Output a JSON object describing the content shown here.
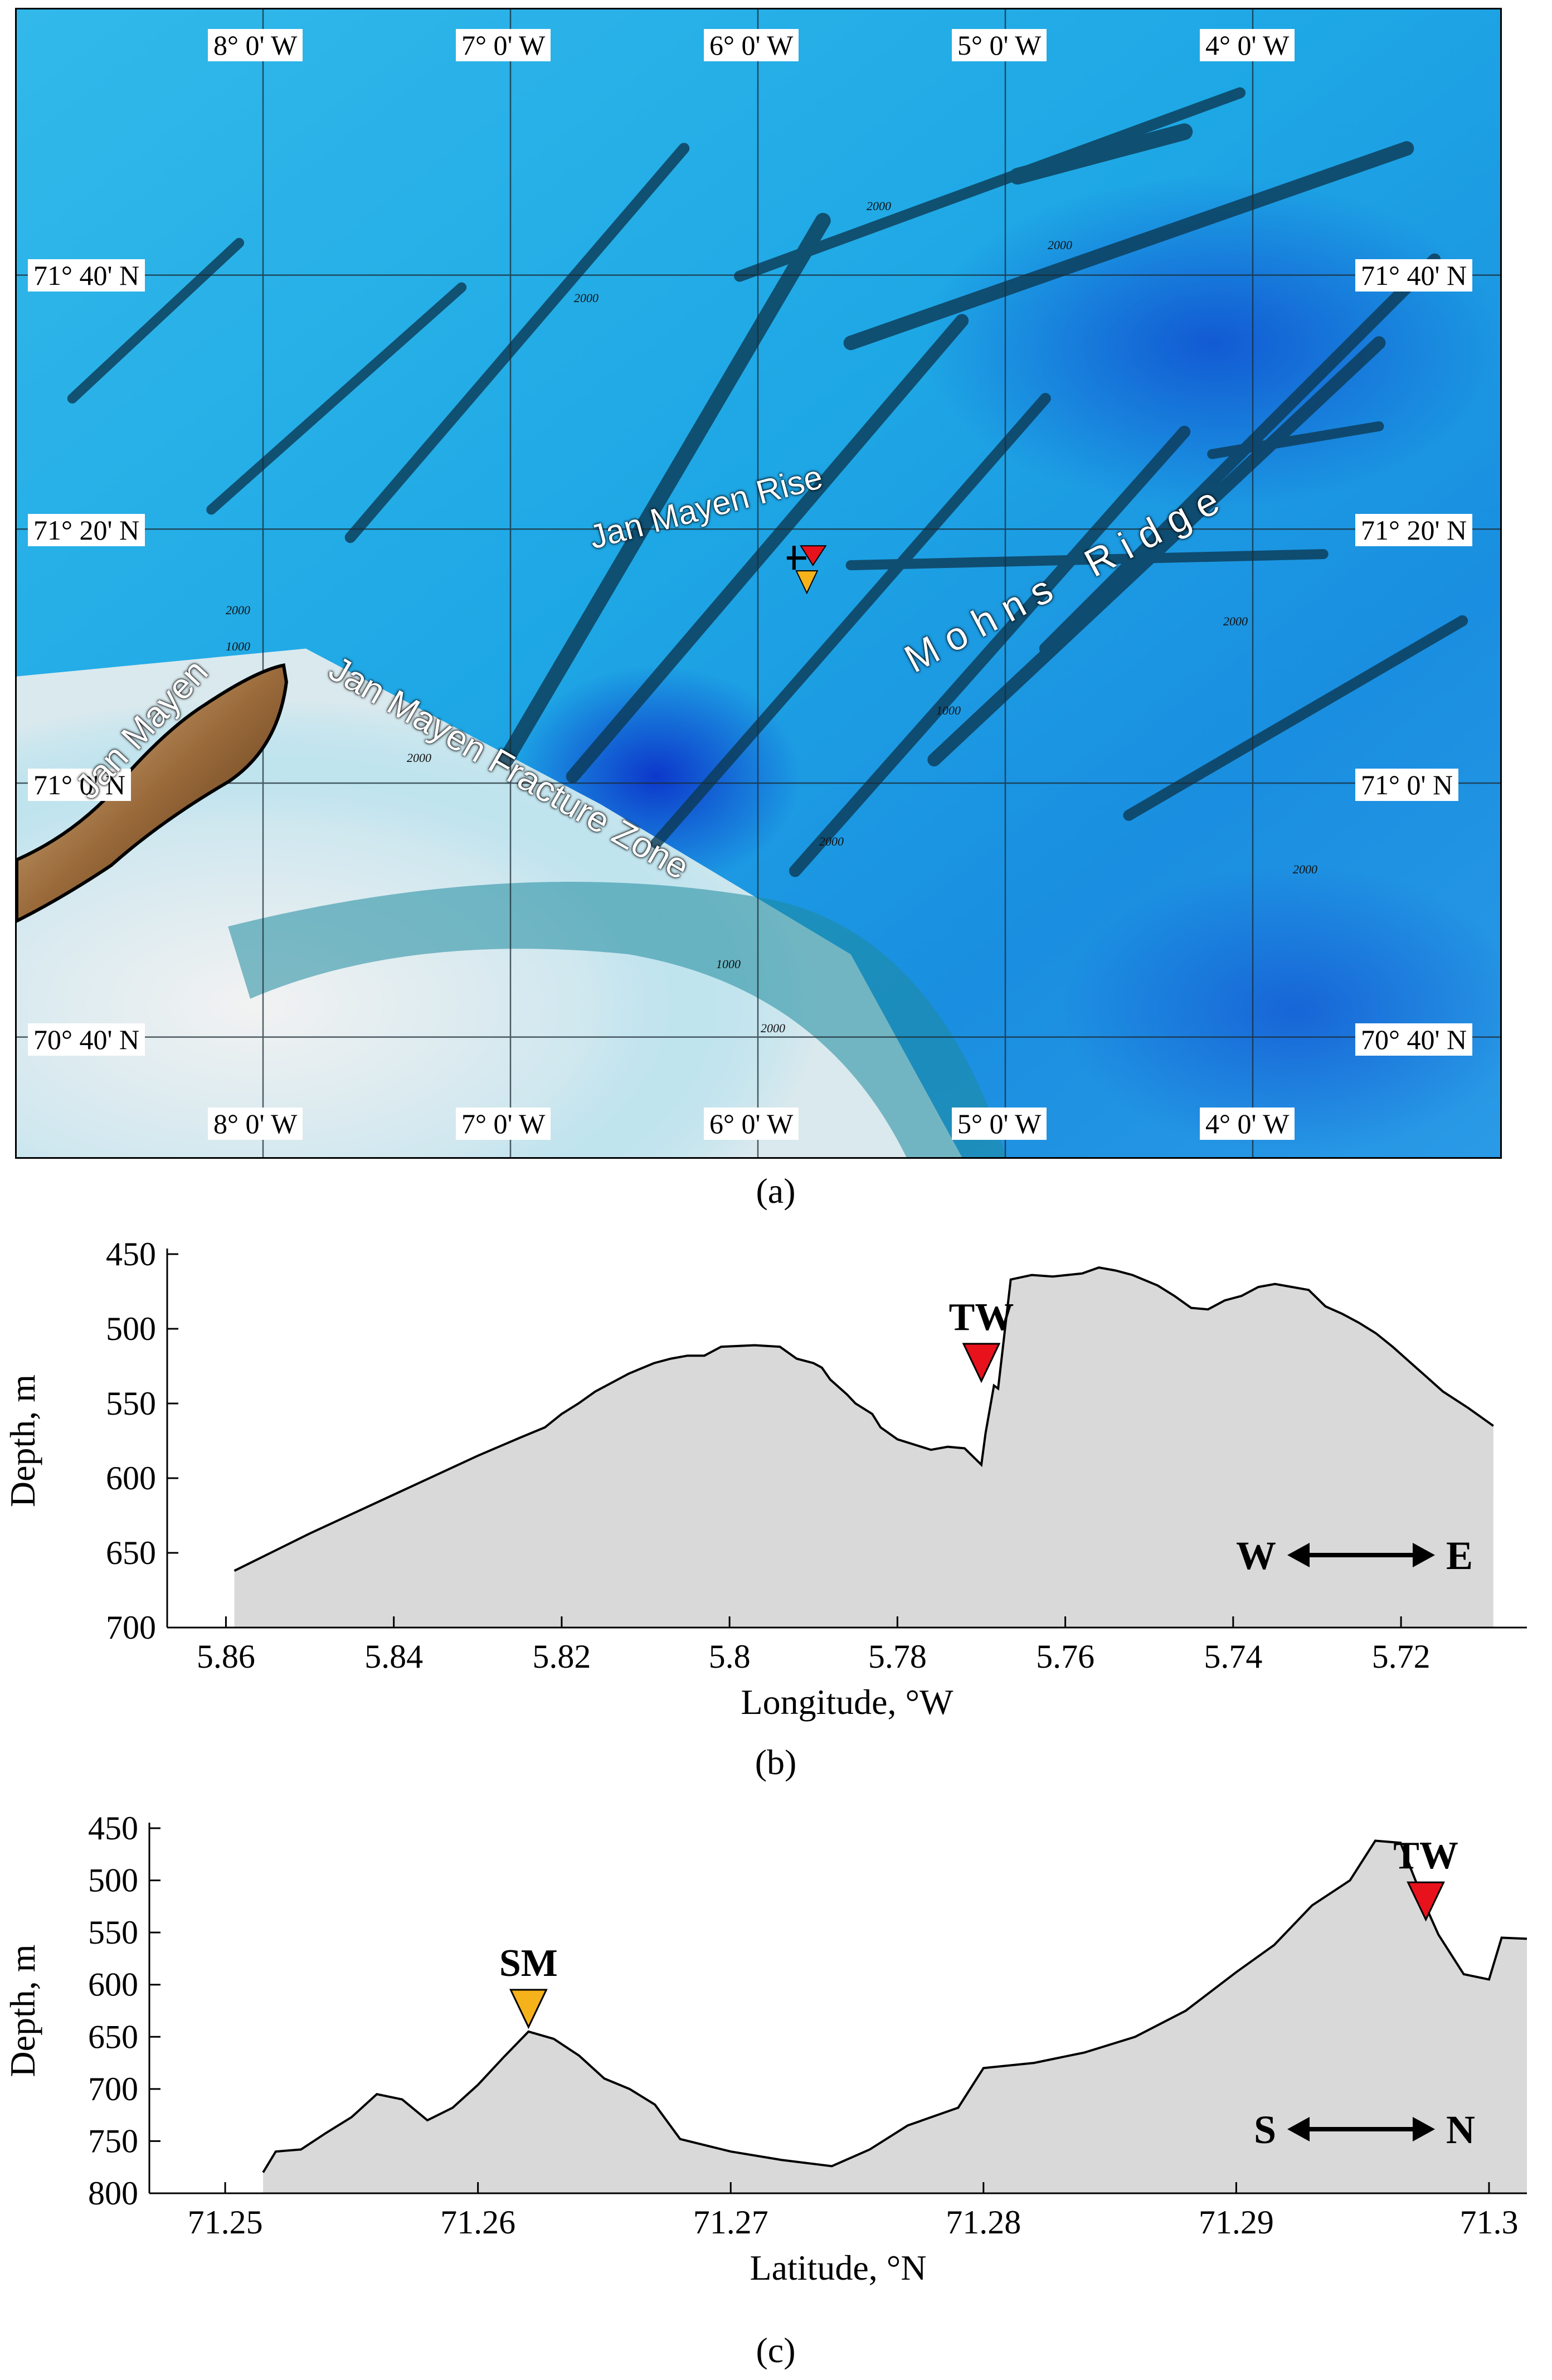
{
  "panel_a": {
    "caption": "(a)",
    "longitude_labels": [
      "8° 0' W",
      "7° 0' W",
      "6° 0' W",
      "5° 0' W",
      "4° 0' W"
    ],
    "latitude_labels": [
      "71° 40' N",
      "71° 20' N",
      "71° 0' N",
      "70° 40' N"
    ],
    "place_names": {
      "island": "Jan Mayen",
      "rise": "Jan Mayen Rise",
      "fracture_zone": "Jan Mayen Fracture Zone",
      "ridge": "M o h n s    R i d g e"
    },
    "contour_labels": [
      "2000",
      "1000",
      "2000",
      "2000",
      "2000",
      "2000",
      "1000",
      "2000",
      "2000",
      "1000",
      "2000",
      "2000"
    ],
    "markers": [
      {
        "name": "TW",
        "color": "#e8121c"
      },
      {
        "name": "SM",
        "color": "#f6b21a"
      }
    ]
  },
  "chart_data": [
    {
      "type": "area",
      "panel": "(b)",
      "xlabel": "Longitude, °W",
      "ylabel": "Depth, m",
      "x_ticks": [
        "5.86",
        "5.84",
        "5.82",
        "5.8",
        "5.78",
        "5.76",
        "5.74",
        "5.72"
      ],
      "y_ticks": [
        "450",
        "500",
        "550",
        "600",
        "650",
        "700"
      ],
      "xlim": [
        5.867,
        5.705
      ],
      "ylim": [
        700,
        450
      ],
      "x_reversed": true,
      "y_inverted": true,
      "grid": false,
      "series": [
        {
          "values": [
            [
              5.859,
              662
            ],
            [
              5.85,
              637
            ],
            [
              5.84,
              611
            ],
            [
              5.83,
              585
            ],
            [
              5.825,
              573
            ],
            [
              5.822,
              566
            ],
            [
              5.82,
              557
            ],
            [
              5.818,
              550
            ],
            [
              5.816,
              542
            ],
            [
              5.814,
              536
            ],
            [
              5.812,
              530
            ],
            [
              5.809,
              523
            ],
            [
              5.807,
              520
            ],
            [
              5.805,
              518
            ],
            [
              5.803,
              518
            ],
            [
              5.801,
              512
            ],
            [
              5.797,
              511
            ],
            [
              5.794,
              512
            ],
            [
              5.792,
              520
            ],
            [
              5.79,
              523
            ],
            [
              5.789,
              526
            ],
            [
              5.788,
              534
            ],
            [
              5.786,
              544
            ],
            [
              5.785,
              550
            ],
            [
              5.783,
              557
            ],
            [
              5.782,
              566
            ],
            [
              5.78,
              574
            ],
            [
              5.776,
              581
            ],
            [
              5.774,
              579
            ],
            [
              5.772,
              580
            ],
            [
              5.77,
              591
            ],
            [
              5.7695,
              570
            ],
            [
              5.7685,
              538
            ],
            [
              5.768,
              540
            ],
            [
              5.7665,
              467
            ],
            [
              5.764,
              464
            ],
            [
              5.7615,
              465
            ],
            [
              5.758,
              463
            ],
            [
              5.756,
              459
            ],
            [
              5.754,
              461
            ],
            [
              5.752,
              464
            ],
            [
              5.749,
              471
            ],
            [
              5.747,
              478
            ],
            [
              5.745,
              486
            ],
            [
              5.743,
              487
            ],
            [
              5.741,
              481
            ],
            [
              5.739,
              478
            ],
            [
              5.737,
              472
            ],
            [
              5.735,
              470
            ],
            [
              5.733,
              472
            ],
            [
              5.731,
              474
            ],
            [
              5.729,
              485
            ],
            [
              5.727,
              490
            ],
            [
              5.725,
              496
            ],
            [
              5.723,
              503
            ],
            [
              5.721,
              512
            ],
            [
              5.719,
              522
            ],
            [
              5.717,
              532
            ],
            [
              5.715,
              542
            ],
            [
              5.712,
              553
            ],
            [
              5.709,
              565
            ]
          ],
          "note_label": ""
        }
      ],
      "annotations": [
        {
          "label": "TW",
          "x": 5.77,
          "y": 538,
          "color": "#e8121c"
        }
      ],
      "direction": {
        "left": "W",
        "right": "E"
      }
    },
    {
      "type": "area",
      "panel": "(c)",
      "xlabel": "Latitude, °N",
      "ylabel": "Depth, m",
      "x_ticks": [
        "71.25",
        "71.26",
        "71.27",
        "71.28",
        "71.29",
        "71.3"
      ],
      "y_ticks": [
        "450",
        "500",
        "550",
        "600",
        "650",
        "700",
        "750",
        "800"
      ],
      "xlim": [
        71.247,
        71.3015
      ],
      "ylim": [
        800,
        450
      ],
      "y_inverted": true,
      "grid": false,
      "series": [
        {
          "values": [
            [
              71.2515,
              780
            ],
            [
              71.252,
              760
            ],
            [
              71.253,
              758
            ],
            [
              71.254,
              742
            ],
            [
              71.255,
              727
            ],
            [
              71.256,
              705
            ],
            [
              71.257,
              710
            ],
            [
              71.258,
              730
            ],
            [
              71.259,
              718
            ],
            [
              71.26,
              696
            ],
            [
              71.261,
              670
            ],
            [
              71.262,
              645
            ],
            [
              71.263,
              652
            ],
            [
              71.264,
              668
            ],
            [
              71.265,
              690
            ],
            [
              71.266,
              700
            ],
            [
              71.267,
              715
            ],
            [
              71.268,
              748
            ],
            [
              71.27,
              760
            ],
            [
              71.272,
              768
            ],
            [
              71.274,
              774
            ],
            [
              71.2755,
              758
            ],
            [
              71.277,
              735
            ],
            [
              71.279,
              718
            ],
            [
              71.28,
              680
            ],
            [
              71.282,
              675
            ],
            [
              71.284,
              665
            ],
            [
              71.286,
              650
            ],
            [
              71.288,
              625
            ],
            [
              71.29,
              588
            ],
            [
              71.2915,
              562
            ],
            [
              71.293,
              524
            ],
            [
              71.2945,
              500
            ],
            [
              71.2955,
              462
            ],
            [
              71.2965,
              464
            ],
            [
              71.2975,
              525
            ],
            [
              71.298,
              552
            ],
            [
              71.299,
              590
            ],
            [
              71.3,
              595
            ],
            [
              71.3005,
              555
            ],
            [
              71.3015,
              556
            ]
          ],
          "note_label": ""
        }
      ],
      "annotations": [
        {
          "label": "SM",
          "x": 71.262,
          "y": 645,
          "color": "#f6b21a"
        },
        {
          "label": "TW",
          "x": 71.2975,
          "y": 542,
          "color": "#e8121c"
        }
      ],
      "direction": {
        "left": "S",
        "right": "N"
      }
    }
  ],
  "captions": {
    "b": "(b)",
    "c": "(c)"
  }
}
